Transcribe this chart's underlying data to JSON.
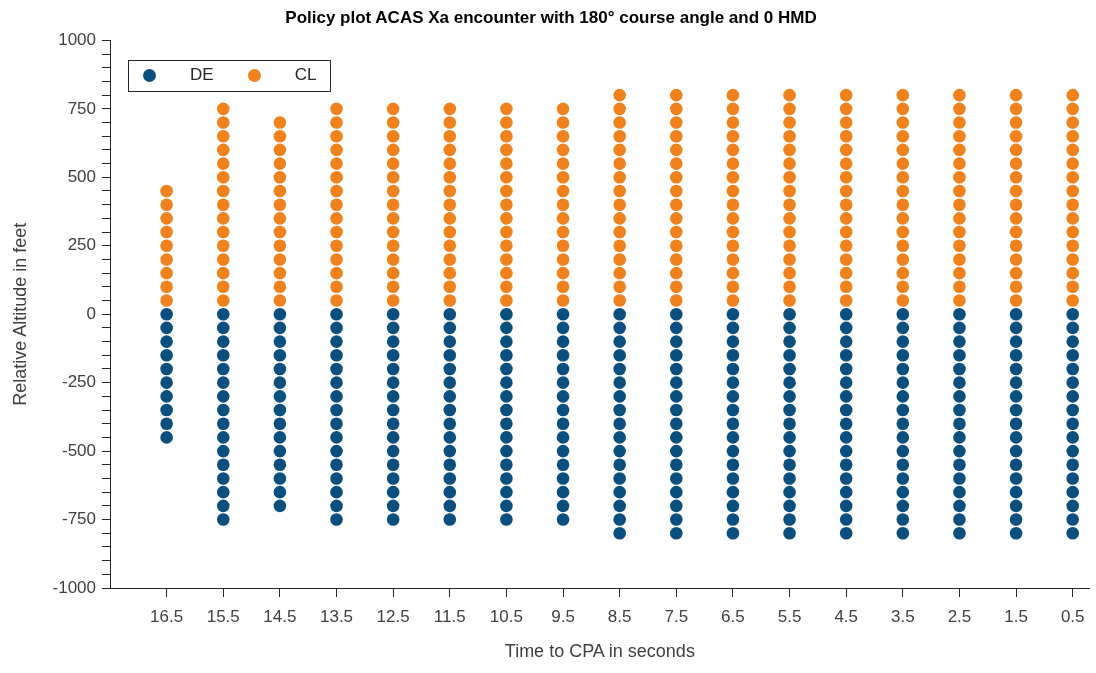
{
  "chart_data": {
    "type": "scatter",
    "title": "Policy plot ACAS Xa encounter with 180° course angle and 0 HMD",
    "xlabel": "Time to CPA in seconds",
    "ylabel": "Relative Altitude in feet",
    "xlim": [
      17.5,
      0.2
    ],
    "xticks": [
      16.5,
      15.5,
      14.5,
      13.5,
      12.5,
      11.5,
      10.5,
      9.5,
      8.5,
      7.5,
      6.5,
      5.5,
      4.5,
      3.5,
      2.5,
      1.5,
      0.5
    ],
    "ylim": [
      -1000,
      1000
    ],
    "yticks": [
      -1000,
      {
        "value": -950,
        "label": null
      },
      {
        "value": -900,
        "label": null
      },
      {
        "value": -850,
        "label": null
      },
      {
        "value": -800,
        "label": null
      },
      -750,
      {
        "value": -700,
        "label": null
      },
      {
        "value": -650,
        "label": null
      },
      {
        "value": -600,
        "label": null
      },
      {
        "value": -550,
        "label": null
      },
      -500,
      {
        "value": -450,
        "label": null
      },
      {
        "value": -400,
        "label": null
      },
      {
        "value": -350,
        "label": null
      },
      {
        "value": -300,
        "label": null
      },
      -250,
      {
        "value": -200,
        "label": null
      },
      {
        "value": -150,
        "label": null
      },
      {
        "value": -100,
        "label": null
      },
      {
        "value": -50,
        "label": null
      },
      0,
      {
        "value": 50,
        "label": null
      },
      {
        "value": 100,
        "label": null
      },
      {
        "value": 150,
        "label": null
      },
      {
        "value": 200,
        "label": null
      },
      250,
      {
        "value": 300,
        "label": null
      },
      {
        "value": 350,
        "label": null
      },
      {
        "value": 400,
        "label": null
      },
      {
        "value": 450,
        "label": null
      },
      500,
      {
        "value": 550,
        "label": null
      },
      {
        "value": 600,
        "label": null
      },
      {
        "value": 650,
        "label": null
      },
      {
        "value": 700,
        "label": null
      },
      750,
      {
        "value": 800,
        "label": null
      },
      {
        "value": 850,
        "label": null
      },
      {
        "value": 900,
        "label": null
      },
      {
        "value": 950,
        "label": null
      },
      1000
    ],
    "grid": false,
    "legend": "top left",
    "marker": "circle",
    "series": [
      {
        "name": "DE",
        "color": "#0b4f7f",
        "x": [
          16.5,
          16.5,
          16.5,
          16.5,
          16.5,
          16.5,
          16.5,
          16.5,
          16.5,
          16.5,
          15.5,
          15.5,
          15.5,
          15.5,
          15.5,
          15.5,
          15.5,
          15.5,
          15.5,
          15.5,
          15.5,
          15.5,
          15.5,
          15.5,
          15.5,
          15.5,
          14.5,
          14.5,
          14.5,
          14.5,
          14.5,
          14.5,
          14.5,
          14.5,
          14.5,
          14.5,
          14.5,
          14.5,
          14.5,
          14.5,
          14.5,
          13.5,
          13.5,
          13.5,
          13.5,
          13.5,
          13.5,
          13.5,
          13.5,
          13.5,
          13.5,
          13.5,
          13.5,
          13.5,
          13.5,
          13.5,
          13.5,
          12.5,
          12.5,
          12.5,
          12.5,
          12.5,
          12.5,
          12.5,
          12.5,
          12.5,
          12.5,
          12.5,
          12.5,
          12.5,
          12.5,
          12.5,
          12.5,
          11.5,
          11.5,
          11.5,
          11.5,
          11.5,
          11.5,
          11.5,
          11.5,
          11.5,
          11.5,
          11.5,
          11.5,
          11.5,
          11.5,
          11.5,
          11.5,
          10.5,
          10.5,
          10.5,
          10.5,
          10.5,
          10.5,
          10.5,
          10.5,
          10.5,
          10.5,
          10.5,
          10.5,
          10.5,
          10.5,
          10.5,
          10.5,
          9.5,
          9.5,
          9.5,
          9.5,
          9.5,
          9.5,
          9.5,
          9.5,
          9.5,
          9.5,
          9.5,
          9.5,
          9.5,
          9.5,
          9.5,
          9.5,
          8.5,
          8.5,
          8.5,
          8.5,
          8.5,
          8.5,
          8.5,
          8.5,
          8.5,
          8.5,
          8.5,
          8.5,
          8.5,
          8.5,
          8.5,
          8.5,
          8.5,
          7.5,
          7.5,
          7.5,
          7.5,
          7.5,
          7.5,
          7.5,
          7.5,
          7.5,
          7.5,
          7.5,
          7.5,
          7.5,
          7.5,
          7.5,
          7.5,
          7.5,
          6.5,
          6.5,
          6.5,
          6.5,
          6.5,
          6.5,
          6.5,
          6.5,
          6.5,
          6.5,
          6.5,
          6.5,
          6.5,
          6.5,
          6.5,
          6.5,
          6.5,
          5.5,
          5.5,
          5.5,
          5.5,
          5.5,
          5.5,
          5.5,
          5.5,
          5.5,
          5.5,
          5.5,
          5.5,
          5.5,
          5.5,
          5.5,
          5.5,
          5.5,
          4.5,
          4.5,
          4.5,
          4.5,
          4.5,
          4.5,
          4.5,
          4.5,
          4.5,
          4.5,
          4.5,
          4.5,
          4.5,
          4.5,
          4.5,
          4.5,
          4.5,
          3.5,
          3.5,
          3.5,
          3.5,
          3.5,
          3.5,
          3.5,
          3.5,
          3.5,
          3.5,
          3.5,
          3.5,
          3.5,
          3.5,
          3.5,
          3.5,
          3.5,
          2.5,
          2.5,
          2.5,
          2.5,
          2.5,
          2.5,
          2.5,
          2.5,
          2.5,
          2.5,
          2.5,
          2.5,
          2.5,
          2.5,
          2.5,
          2.5,
          2.5,
          1.5,
          1.5,
          1.5,
          1.5,
          1.5,
          1.5,
          1.5,
          1.5,
          1.5,
          1.5,
          1.5,
          1.5,
          1.5,
          1.5,
          1.5,
          1.5,
          1.5,
          0.5,
          0.5,
          0.5,
          0.5,
          0.5,
          0.5,
          0.5,
          0.5,
          0.5,
          0.5,
          0.5,
          0.5,
          0.5,
          0.5,
          0.5,
          0.5,
          0.5
        ],
        "values": [
          0,
          -50,
          -100,
          -150,
          -200,
          -250,
          -300,
          -350,
          -400,
          -450,
          0,
          -50,
          -100,
          -150,
          -200,
          -250,
          -300,
          -350,
          -400,
          -450,
          -500,
          -550,
          -600,
          -650,
          -700,
          -750,
          0,
          -50,
          -100,
          -150,
          -200,
          -250,
          -300,
          -350,
          -400,
          -450,
          -500,
          -550,
          -600,
          -650,
          -700,
          0,
          -50,
          -100,
          -150,
          -200,
          -250,
          -300,
          -350,
          -400,
          -450,
          -500,
          -550,
          -600,
          -650,
          -700,
          -750,
          0,
          -50,
          -100,
          -150,
          -200,
          -250,
          -300,
          -350,
          -400,
          -450,
          -500,
          -550,
          -600,
          -650,
          -700,
          -750,
          0,
          -50,
          -100,
          -150,
          -200,
          -250,
          -300,
          -350,
          -400,
          -450,
          -500,
          -550,
          -600,
          -650,
          -700,
          -750,
          0,
          -50,
          -100,
          -150,
          -200,
          -250,
          -300,
          -350,
          -400,
          -450,
          -500,
          -550,
          -600,
          -650,
          -700,
          -750,
          0,
          -50,
          -100,
          -150,
          -200,
          -250,
          -300,
          -350,
          -400,
          -450,
          -500,
          -550,
          -600,
          -650,
          -700,
          -750,
          0,
          -50,
          -100,
          -150,
          -200,
          -250,
          -300,
          -350,
          -400,
          -450,
          -500,
          -550,
          -600,
          -650,
          -700,
          -750,
          -800,
          0,
          -50,
          -100,
          -150,
          -200,
          -250,
          -300,
          -350,
          -400,
          -450,
          -500,
          -550,
          -600,
          -650,
          -700,
          -750,
          -800,
          0,
          -50,
          -100,
          -150,
          -200,
          -250,
          -300,
          -350,
          -400,
          -450,
          -500,
          -550,
          -600,
          -650,
          -700,
          -750,
          -800,
          0,
          -50,
          -100,
          -150,
          -200,
          -250,
          -300,
          -350,
          -400,
          -450,
          -500,
          -550,
          -600,
          -650,
          -700,
          -750,
          -800,
          0,
          -50,
          -100,
          -150,
          -200,
          -250,
          -300,
          -350,
          -400,
          -450,
          -500,
          -550,
          -600,
          -650,
          -700,
          -750,
          -800,
          0,
          -50,
          -100,
          -150,
          -200,
          -250,
          -300,
          -350,
          -400,
          -450,
          -500,
          -550,
          -600,
          -650,
          -700,
          -750,
          -800,
          0,
          -50,
          -100,
          -150,
          -200,
          -250,
          -300,
          -350,
          -400,
          -450,
          -500,
          -550,
          -600,
          -650,
          -700,
          -750,
          -800,
          0,
          -50,
          -100,
          -150,
          -200,
          -250,
          -300,
          -350,
          -400,
          -450,
          -500,
          -550,
          -600,
          -650,
          -700,
          -750,
          -800,
          0,
          -50,
          -100,
          -150,
          -200,
          -250,
          -300,
          -350,
          -400,
          -450,
          -500,
          -550,
          -600,
          -650,
          -700,
          -750,
          -800
        ]
      },
      {
        "name": "CL",
        "color": "#f0821e",
        "x": [
          16.5,
          16.5,
          16.5,
          16.5,
          16.5,
          16.5,
          16.5,
          16.5,
          16.5,
          15.5,
          15.5,
          15.5,
          15.5,
          15.5,
          15.5,
          15.5,
          15.5,
          15.5,
          15.5,
          15.5,
          15.5,
          15.5,
          15.5,
          15.5,
          14.5,
          14.5,
          14.5,
          14.5,
          14.5,
          14.5,
          14.5,
          14.5,
          14.5,
          14.5,
          14.5,
          14.5,
          14.5,
          14.5,
          13.5,
          13.5,
          13.5,
          13.5,
          13.5,
          13.5,
          13.5,
          13.5,
          13.5,
          13.5,
          13.5,
          13.5,
          13.5,
          13.5,
          13.5,
          12.5,
          12.5,
          12.5,
          12.5,
          12.5,
          12.5,
          12.5,
          12.5,
          12.5,
          12.5,
          12.5,
          12.5,
          12.5,
          12.5,
          12.5,
          11.5,
          11.5,
          11.5,
          11.5,
          11.5,
          11.5,
          11.5,
          11.5,
          11.5,
          11.5,
          11.5,
          11.5,
          11.5,
          11.5,
          11.5,
          10.5,
          10.5,
          10.5,
          10.5,
          10.5,
          10.5,
          10.5,
          10.5,
          10.5,
          10.5,
          10.5,
          10.5,
          10.5,
          10.5,
          10.5,
          9.5,
          9.5,
          9.5,
          9.5,
          9.5,
          9.5,
          9.5,
          9.5,
          9.5,
          9.5,
          9.5,
          9.5,
          9.5,
          9.5,
          9.5,
          8.5,
          8.5,
          8.5,
          8.5,
          8.5,
          8.5,
          8.5,
          8.5,
          8.5,
          8.5,
          8.5,
          8.5,
          8.5,
          8.5,
          8.5,
          8.5,
          7.5,
          7.5,
          7.5,
          7.5,
          7.5,
          7.5,
          7.5,
          7.5,
          7.5,
          7.5,
          7.5,
          7.5,
          7.5,
          7.5,
          7.5,
          7.5,
          6.5,
          6.5,
          6.5,
          6.5,
          6.5,
          6.5,
          6.5,
          6.5,
          6.5,
          6.5,
          6.5,
          6.5,
          6.5,
          6.5,
          6.5,
          6.5,
          5.5,
          5.5,
          5.5,
          5.5,
          5.5,
          5.5,
          5.5,
          5.5,
          5.5,
          5.5,
          5.5,
          5.5,
          5.5,
          5.5,
          5.5,
          5.5,
          4.5,
          4.5,
          4.5,
          4.5,
          4.5,
          4.5,
          4.5,
          4.5,
          4.5,
          4.5,
          4.5,
          4.5,
          4.5,
          4.5,
          4.5,
          4.5,
          3.5,
          3.5,
          3.5,
          3.5,
          3.5,
          3.5,
          3.5,
          3.5,
          3.5,
          3.5,
          3.5,
          3.5,
          3.5,
          3.5,
          3.5,
          3.5,
          2.5,
          2.5,
          2.5,
          2.5,
          2.5,
          2.5,
          2.5,
          2.5,
          2.5,
          2.5,
          2.5,
          2.5,
          2.5,
          2.5,
          2.5,
          2.5,
          1.5,
          1.5,
          1.5,
          1.5,
          1.5,
          1.5,
          1.5,
          1.5,
          1.5,
          1.5,
          1.5,
          1.5,
          1.5,
          1.5,
          1.5,
          1.5,
          0.5,
          0.5,
          0.5,
          0.5,
          0.5,
          0.5,
          0.5,
          0.5,
          0.5,
          0.5,
          0.5,
          0.5,
          0.5,
          0.5,
          0.5,
          0.5
        ],
        "values": [
          50,
          100,
          150,
          200,
          250,
          300,
          350,
          400,
          450,
          50,
          100,
          150,
          200,
          250,
          300,
          350,
          400,
          450,
          500,
          550,
          600,
          650,
          700,
          750,
          50,
          100,
          150,
          200,
          250,
          300,
          350,
          400,
          450,
          500,
          550,
          600,
          650,
          700,
          50,
          100,
          150,
          200,
          250,
          300,
          350,
          400,
          450,
          500,
          550,
          600,
          650,
          700,
          750,
          50,
          100,
          150,
          200,
          250,
          300,
          350,
          400,
          450,
          500,
          550,
          600,
          650,
          700,
          750,
          50,
          100,
          150,
          200,
          250,
          300,
          350,
          400,
          450,
          500,
          550,
          600,
          650,
          700,
          750,
          50,
          100,
          150,
          200,
          250,
          300,
          350,
          400,
          450,
          500,
          550,
          600,
          650,
          700,
          750,
          50,
          100,
          150,
          200,
          250,
          300,
          350,
          400,
          450,
          500,
          550,
          600,
          650,
          700,
          750,
          50,
          100,
          150,
          200,
          250,
          300,
          350,
          400,
          450,
          500,
          550,
          600,
          650,
          700,
          750,
          800,
          50,
          100,
          150,
          200,
          250,
          300,
          350,
          400,
          450,
          500,
          550,
          600,
          650,
          700,
          750,
          800,
          50,
          100,
          150,
          200,
          250,
          300,
          350,
          400,
          450,
          500,
          550,
          600,
          650,
          700,
          750,
          800,
          50,
          100,
          150,
          200,
          250,
          300,
          350,
          400,
          450,
          500,
          550,
          600,
          650,
          700,
          750,
          800,
          50,
          100,
          150,
          200,
          250,
          300,
          350,
          400,
          450,
          500,
          550,
          600,
          650,
          700,
          750,
          800,
          50,
          100,
          150,
          200,
          250,
          300,
          350,
          400,
          450,
          500,
          550,
          600,
          650,
          700,
          750,
          800,
          50,
          100,
          150,
          200,
          250,
          300,
          350,
          400,
          450,
          500,
          550,
          600,
          650,
          700,
          750,
          800,
          50,
          100,
          150,
          200,
          250,
          300,
          350,
          400,
          450,
          500,
          550,
          600,
          650,
          700,
          750,
          800,
          50,
          100,
          150,
          200,
          250,
          300,
          350,
          400,
          450,
          500,
          550,
          600,
          650,
          700,
          750,
          800
        ]
      }
    ]
  }
}
